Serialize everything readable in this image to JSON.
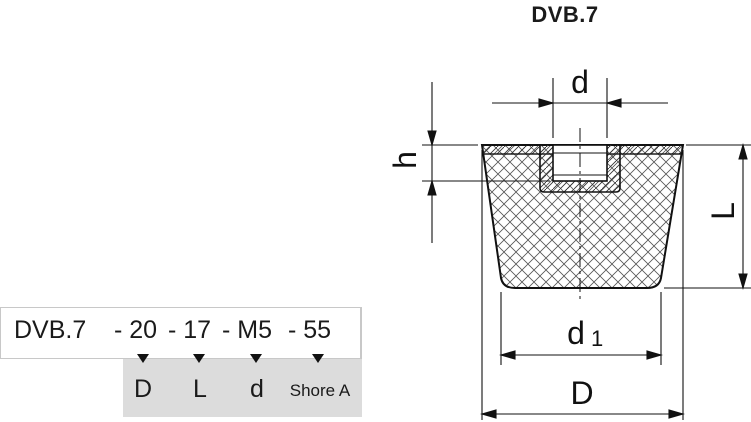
{
  "title": "DVB.7",
  "order_code": {
    "parts": [
      "DVB.7",
      "- 20",
      "- 17",
      "- M5",
      "- 55"
    ]
  },
  "legend": {
    "labels": [
      "D",
      "L",
      "d",
      "Shore A"
    ]
  },
  "dimensions": {
    "d": "d",
    "h": "h",
    "L": "L",
    "d1": "d",
    "d1_subscript": "1",
    "D": "D"
  },
  "colors": {
    "line": "#111111",
    "hatch": "#555555",
    "legend_bg": "#dcdcdc"
  }
}
